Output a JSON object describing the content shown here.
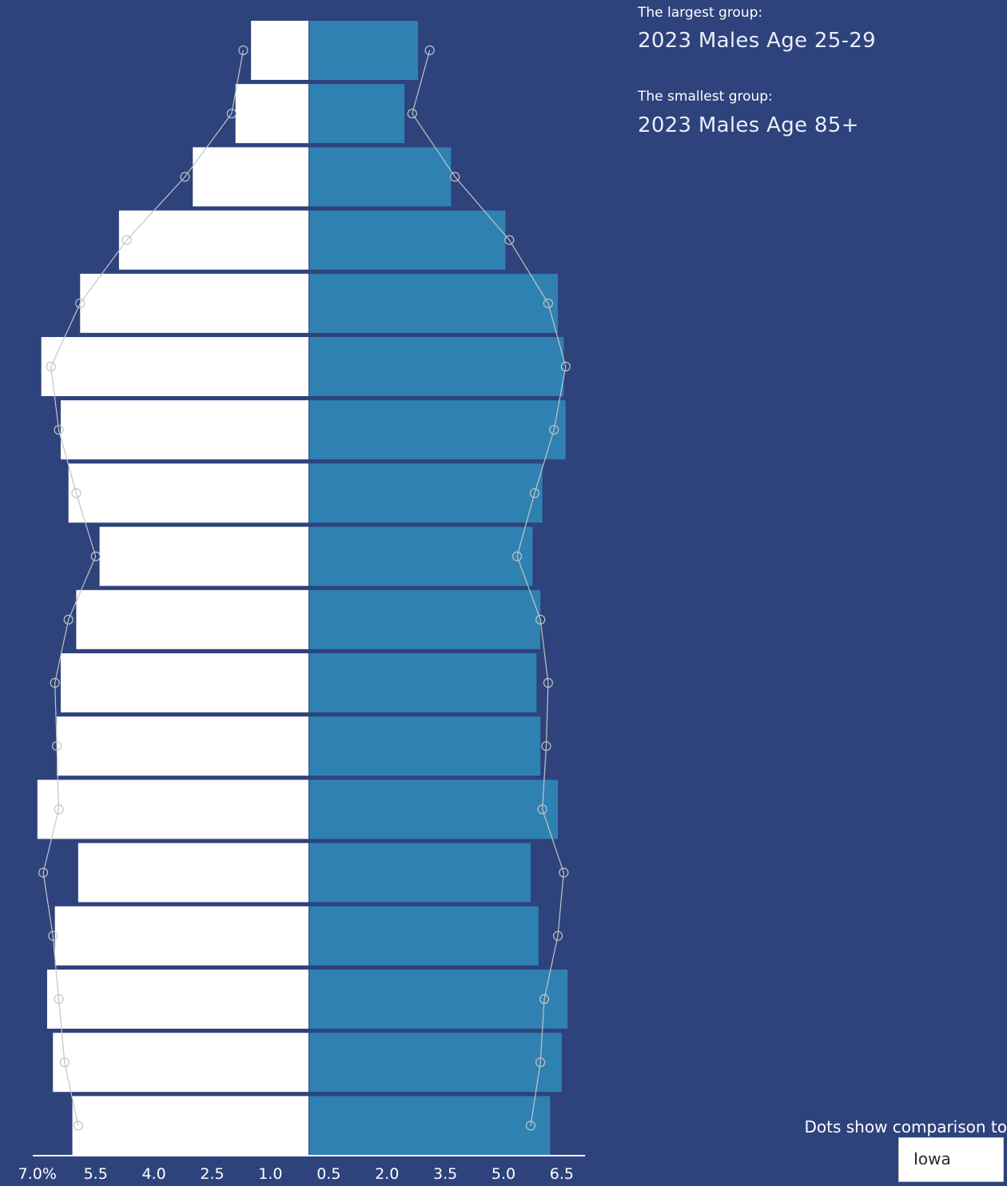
{
  "info": {
    "largest_label": "The largest group:",
    "largest_value": "2023 Males Age 25-29",
    "smallest_label": "The smallest group:",
    "smallest_value": "2023 Males Age 85+"
  },
  "comparison": {
    "label": "Dots show comparison to",
    "selected": "Iowa"
  },
  "colors": {
    "background": "#2e427c",
    "female_bar": "#ffffff",
    "male_bar": "#2f81b2",
    "comparison_line": "#c4c4c4"
  },
  "chart_data": {
    "type": "bar",
    "orientation": "horizontal-population-pyramid",
    "x_tick_labels": [
      "7.0%",
      "5.5",
      "4.0",
      "2.5",
      "1.0",
      "0.5",
      "2.0",
      "3.5",
      "5.0",
      "6.5"
    ],
    "x_ticks_left": [
      7.0,
      5.5,
      4.0,
      2.5,
      1.0
    ],
    "x_ticks_right": [
      0.5,
      2.0,
      3.5,
      5.0,
      6.5
    ],
    "xlim_left": [
      0,
      7.0
    ],
    "xlim_right": [
      0,
      7.0
    ],
    "series": [
      {
        "side": "left",
        "values": [
          1.5,
          1.9,
          3.0,
          4.9,
          5.9,
          6.9,
          6.4,
          6.2,
          5.4,
          6.0,
          6.4,
          6.5,
          7.0,
          5.95,
          6.55,
          6.75,
          6.6,
          6.1
        ]
      },
      {
        "side": "right",
        "values": [
          2.8,
          2.45,
          3.65,
          5.05,
          6.4,
          6.55,
          6.6,
          6.0,
          5.75,
          5.95,
          5.85,
          5.95,
          6.4,
          5.7,
          5.9,
          6.65,
          6.5,
          6.2
        ]
      },
      {
        "side": "left",
        "style": "dots",
        "values": [
          1.7,
          2.0,
          3.2,
          4.7,
          5.9,
          6.65,
          6.45,
          6.0,
          5.5,
          6.2,
          6.55,
          6.5,
          6.45,
          6.85,
          6.6,
          6.45,
          6.3,
          5.95
        ]
      },
      {
        "side": "right",
        "style": "dots",
        "values": [
          3.1,
          2.65,
          3.75,
          5.15,
          6.15,
          6.6,
          6.3,
          5.8,
          5.35,
          5.95,
          6.15,
          6.1,
          6.0,
          6.55,
          6.4,
          6.05,
          5.95,
          5.7
        ]
      }
    ]
  }
}
